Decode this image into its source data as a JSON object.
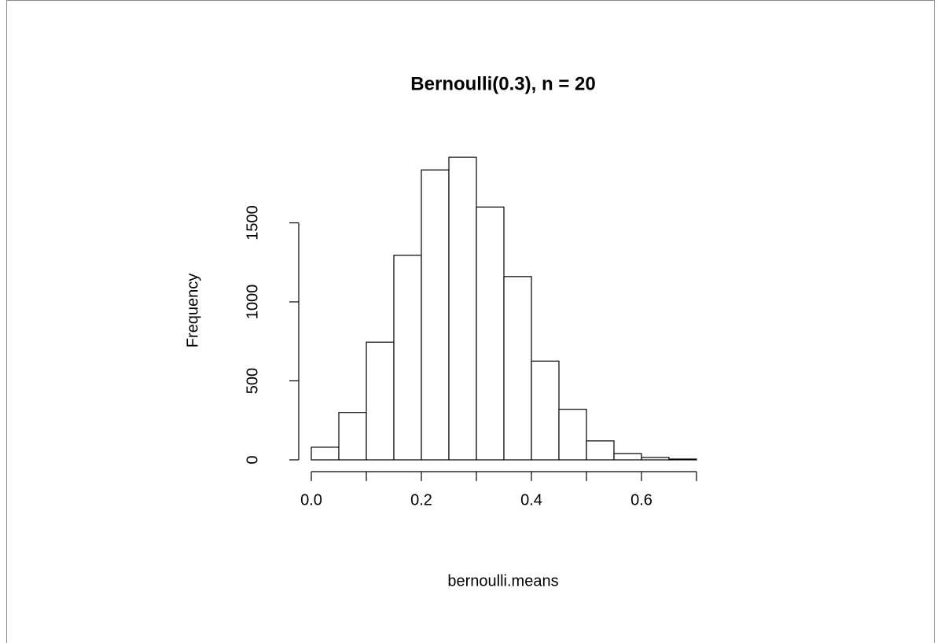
{
  "chart_data": {
    "type": "histogram",
    "title": "Bernoulli(0.3), n = 20",
    "xlabel": "bernoulli.means",
    "ylabel": "Frequency",
    "bins": [
      0,
      0.05,
      0.1,
      0.15,
      0.2,
      0.25,
      0.3,
      0.35,
      0.4,
      0.45,
      0.5,
      0.55,
      0.6,
      0.65,
      0.7
    ],
    "values": [
      80,
      300,
      745,
      1295,
      1835,
      1915,
      1600,
      1160,
      625,
      320,
      120,
      40,
      15,
      5
    ],
    "color": "#ffffff",
    "xlim": [
      0,
      0.7
    ],
    "ylim": [
      0,
      2000
    ],
    "xticks": [
      {
        "value": 0,
        "label": "0.0"
      },
      0.2,
      0.4,
      0.6
    ],
    "x_unlabeled_ticks": [
      0.1,
      0.3,
      0.5,
      0.7
    ],
    "yticks": [
      0,
      500,
      1000,
      1500
    ],
    "grid": false
  }
}
